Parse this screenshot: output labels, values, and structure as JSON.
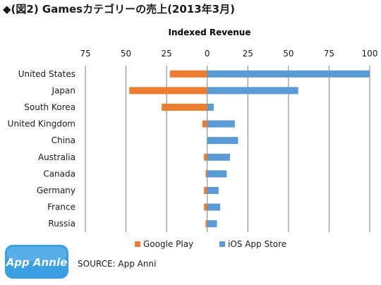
{
  "title": "◆(図2) Gamesカテゴリーの売上(2013年3月)",
  "source": "SOURCE: App Anni",
  "logo_text": "App Annie",
  "colors": {
    "google": "#ed7d31",
    "ios": "#5b9bd5",
    "grid": "#7f7f7f",
    "logo": "#3a9fe3"
  },
  "chart_data": {
    "type": "bar",
    "orientation": "horizontal",
    "title": "Indexed Revenue",
    "xticks": [
      "75",
      "50",
      "25",
      "0",
      "25",
      "50",
      "75",
      "100"
    ],
    "xlim": [
      -75,
      100
    ],
    "categories": [
      "United States",
      "Japan",
      "South Korea",
      "United Kingdom",
      "China",
      "Australia",
      "Canada",
      "Germany",
      "France",
      "Russia"
    ],
    "series": [
      {
        "name": "Google Play",
        "values": [
          -23,
          -48,
          -28,
          -3,
          0,
          -2,
          -1,
          -2,
          -2,
          -1
        ]
      },
      {
        "name": "iOS App Store",
        "values": [
          100,
          56,
          4,
          17,
          19,
          14,
          12,
          7,
          8,
          6
        ]
      }
    ],
    "grid": true,
    "legend": "bottom"
  }
}
